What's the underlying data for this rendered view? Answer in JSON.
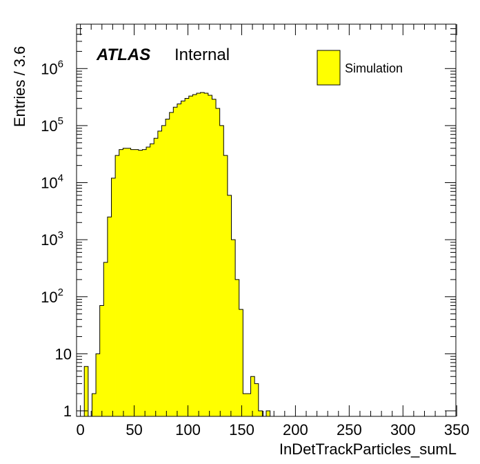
{
  "chart_data": {
    "type": "bar",
    "xlabel": "InDetTrackParticles_sumL",
    "ylabel": "Entries / 3.6",
    "xlim": [
      -3.6,
      349.2
    ],
    "ylim": [
      0.8,
      6000000
    ],
    "log_y": true,
    "histogram_style": "filled step",
    "colors": {
      "fill": "#ffff00",
      "line": "#000000"
    },
    "x_ticks": [
      0,
      50,
      100,
      150,
      200,
      250,
      300,
      350
    ],
    "y_ticks": [
      {
        "value": 1,
        "base": "1",
        "exp": ""
      },
      {
        "value": 10,
        "base": "10",
        "exp": ""
      },
      {
        "value": 100,
        "base": "10",
        "exp": "2"
      },
      {
        "value": 1000,
        "base": "10",
        "exp": "3"
      },
      {
        "value": 10000,
        "base": "10",
        "exp": "4"
      },
      {
        "value": 100000,
        "base": "10",
        "exp": "5"
      },
      {
        "value": 1000000,
        "base": "10",
        "exp": "6"
      }
    ],
    "bin_width": 3.6,
    "bin_edges_start": 0,
    "values": [
      0,
      6,
      0,
      2,
      10,
      70,
      400,
      2500,
      12000,
      30000,
      38000,
      40000,
      40000,
      38000,
      38000,
      37000,
      38000,
      42000,
      48000,
      60000,
      80000,
      100000,
      130000,
      170000,
      210000,
      240000,
      270000,
      300000,
      330000,
      350000,
      370000,
      380000,
      370000,
      340000,
      290000,
      200000,
      100000,
      30000,
      6000,
      1000,
      200,
      60,
      2,
      2,
      4,
      3,
      1,
      0,
      1
    ],
    "legend": [
      {
        "name": "Simulation",
        "color": "#ffff00"
      }
    ],
    "legend_position": "top-right",
    "annotations": [
      {
        "bold_italic": "ATLAS",
        "text": "Internal"
      }
    ]
  }
}
